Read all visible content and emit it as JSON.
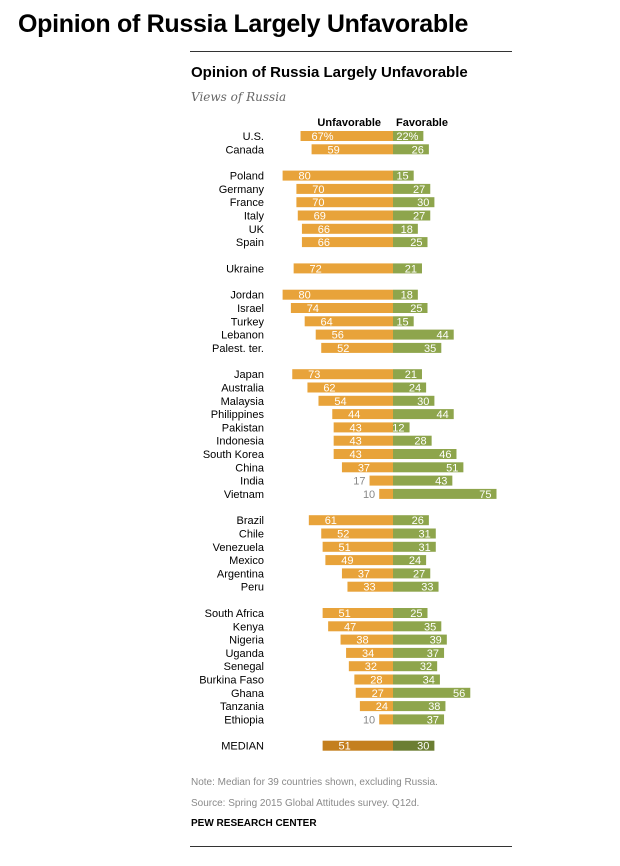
{
  "page_title": "Opinion of Russia Largely Unfavorable",
  "chart_data": {
    "type": "bar",
    "title": "Opinion of Russia Largely Unfavorable",
    "subtitle": "Views of Russia",
    "series": [
      {
        "name": "Unfavorable",
        "color": "#e8a33a"
      },
      {
        "name": "Favorable",
        "color": "#8ea54c"
      }
    ],
    "median_colors": {
      "unfavorable": "#c47f1e",
      "favorable": "#6b7e33"
    },
    "groups": [
      {
        "rows": [
          {
            "label": "U.S.",
            "unfavorable": 67,
            "favorable": 22,
            "unfavorable_text": "67%",
            "favorable_text": "22%"
          },
          {
            "label": "Canada",
            "unfavorable": 59,
            "favorable": 26
          }
        ]
      },
      {
        "rows": [
          {
            "label": "Poland",
            "unfavorable": 80,
            "favorable": 15
          },
          {
            "label": "Germany",
            "unfavorable": 70,
            "favorable": 27
          },
          {
            "label": "France",
            "unfavorable": 70,
            "favorable": 30
          },
          {
            "label": "Italy",
            "unfavorable": 69,
            "favorable": 27
          },
          {
            "label": "UK",
            "unfavorable": 66,
            "favorable": 18
          },
          {
            "label": "Spain",
            "unfavorable": 66,
            "favorable": 25
          }
        ]
      },
      {
        "rows": [
          {
            "label": "Ukraine",
            "unfavorable": 72,
            "favorable": 21
          }
        ]
      },
      {
        "rows": [
          {
            "label": "Jordan",
            "unfavorable": 80,
            "favorable": 18
          },
          {
            "label": "Israel",
            "unfavorable": 74,
            "favorable": 25
          },
          {
            "label": "Turkey",
            "unfavorable": 64,
            "favorable": 15
          },
          {
            "label": "Lebanon",
            "unfavorable": 56,
            "favorable": 44
          },
          {
            "label": "Palest. ter.",
            "unfavorable": 52,
            "favorable": 35
          }
        ]
      },
      {
        "rows": [
          {
            "label": "Japan",
            "unfavorable": 73,
            "favorable": 21
          },
          {
            "label": "Australia",
            "unfavorable": 62,
            "favorable": 24
          },
          {
            "label": "Malaysia",
            "unfavorable": 54,
            "favorable": 30
          },
          {
            "label": "Philippines",
            "unfavorable": 44,
            "favorable": 44
          },
          {
            "label": "Pakistan",
            "unfavorable": 43,
            "favorable": 12
          },
          {
            "label": "Indonesia",
            "unfavorable": 43,
            "favorable": 28
          },
          {
            "label": "South Korea",
            "unfavorable": 43,
            "favorable": 46
          },
          {
            "label": "China",
            "unfavorable": 37,
            "favorable": 51
          },
          {
            "label": "India",
            "unfavorable": 17,
            "favorable": 43
          },
          {
            "label": "Vietnam",
            "unfavorable": 10,
            "favorable": 75
          }
        ]
      },
      {
        "rows": [
          {
            "label": "Brazil",
            "unfavorable": 61,
            "favorable": 26
          },
          {
            "label": "Chile",
            "unfavorable": 52,
            "favorable": 31
          },
          {
            "label": "Venezuela",
            "unfavorable": 51,
            "favorable": 31
          },
          {
            "label": "Mexico",
            "unfavorable": 49,
            "favorable": 24
          },
          {
            "label": "Argentina",
            "unfavorable": 37,
            "favorable": 27
          },
          {
            "label": "Peru",
            "unfavorable": 33,
            "favorable": 33
          }
        ]
      },
      {
        "rows": [
          {
            "label": "South Africa",
            "unfavorable": 51,
            "favorable": 25
          },
          {
            "label": "Kenya",
            "unfavorable": 47,
            "favorable": 35
          },
          {
            "label": "Nigeria",
            "unfavorable": 38,
            "favorable": 39
          },
          {
            "label": "Uganda",
            "unfavorable": 34,
            "favorable": 37
          },
          {
            "label": "Senegal",
            "unfavorable": 32,
            "favorable": 32
          },
          {
            "label": "Burkina Faso",
            "unfavorable": 28,
            "favorable": 34
          },
          {
            "label": "Ghana",
            "unfavorable": 27,
            "favorable": 56
          },
          {
            "label": "Tanzania",
            "unfavorable": 24,
            "favorable": 38
          },
          {
            "label": "Ethiopia",
            "unfavorable": 10,
            "favorable": 37
          }
        ]
      },
      {
        "median": true,
        "rows": [
          {
            "label": "MEDIAN",
            "unfavorable": 51,
            "favorable": 30
          }
        ]
      }
    ]
  },
  "note": "Note: Median for 39 countries shown, excluding Russia.",
  "source": "Source: Spring 2015 Global Attitudes survey. Q12d.",
  "credit": "PEW RESEARCH CENTER"
}
